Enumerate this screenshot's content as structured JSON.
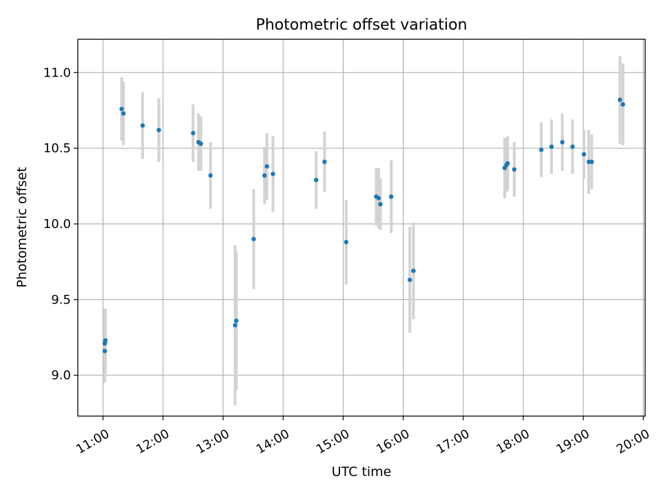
{
  "chart_data": {
    "type": "scatter",
    "title": "Photometric offset variation",
    "xlabel": "UTC time",
    "ylabel": "Photometric offset",
    "x_unit": "UTC hour of day (decimal)",
    "xlim": [
      10.58,
      20.03
    ],
    "ylim": [
      8.73,
      11.22
    ],
    "grid": true,
    "legend": "none",
    "x_ticks": [
      {
        "value": 11,
        "label": "11:00"
      },
      {
        "value": 12,
        "label": "12:00"
      },
      {
        "value": 13,
        "label": "13:00"
      },
      {
        "value": 14,
        "label": "14:00"
      },
      {
        "value": 15,
        "label": "15:00"
      },
      {
        "value": 16,
        "label": "16:00"
      },
      {
        "value": 17,
        "label": "17:00"
      },
      {
        "value": 18,
        "label": "18:00"
      },
      {
        "value": 19,
        "label": "19:00"
      },
      {
        "value": 20,
        "label": "20:00"
      }
    ],
    "y_ticks": [
      {
        "value": 9.0,
        "label": "9.0"
      },
      {
        "value": 9.5,
        "label": "9.5"
      },
      {
        "value": 10.0,
        "label": "10.0"
      },
      {
        "value": 10.5,
        "label": "10.5"
      },
      {
        "value": 11.0,
        "label": "11.0"
      }
    ],
    "colors": {
      "point": "#1f77b4",
      "errorbar": "#d3d3d3",
      "grid": "#b0b0b0"
    },
    "series": [
      {
        "points": [
          {
            "x": 11.03,
            "y": 9.16,
            "err": 0.21
          },
          {
            "x": 11.03,
            "y": 9.21,
            "err": 0.23
          },
          {
            "x": 11.04,
            "y": 9.23,
            "err": 0.21
          },
          {
            "x": 11.31,
            "y": 10.76,
            "err": 0.21
          },
          {
            "x": 11.34,
            "y": 10.73,
            "err": 0.21
          },
          {
            "x": 11.66,
            "y": 10.65,
            "err": 0.22
          },
          {
            "x": 11.93,
            "y": 10.62,
            "err": 0.21
          },
          {
            "x": 12.5,
            "y": 10.6,
            "err": 0.19
          },
          {
            "x": 12.59,
            "y": 10.54,
            "err": 0.19
          },
          {
            "x": 12.63,
            "y": 10.53,
            "err": 0.18
          },
          {
            "x": 12.79,
            "y": 10.32,
            "err": 0.22
          },
          {
            "x": 13.2,
            "y": 9.33,
            "err": 0.53
          },
          {
            "x": 13.22,
            "y": 9.36,
            "err": 0.46
          },
          {
            "x": 13.51,
            "y": 9.9,
            "err": 0.33
          },
          {
            "x": 13.69,
            "y": 10.32,
            "err": 0.19
          },
          {
            "x": 13.73,
            "y": 10.38,
            "err": 0.22
          },
          {
            "x": 13.83,
            "y": 10.33,
            "err": 0.25
          },
          {
            "x": 14.55,
            "y": 10.29,
            "err": 0.19
          },
          {
            "x": 14.69,
            "y": 10.41,
            "err": 0.2
          },
          {
            "x": 15.05,
            "y": 9.88,
            "err": 0.28
          },
          {
            "x": 15.55,
            "y": 10.18,
            "err": 0.19
          },
          {
            "x": 15.59,
            "y": 10.17,
            "err": 0.2
          },
          {
            "x": 15.62,
            "y": 10.13,
            "err": 0.17
          },
          {
            "x": 15.8,
            "y": 10.18,
            "err": 0.24
          },
          {
            "x": 16.11,
            "y": 9.63,
            "err": 0.35
          },
          {
            "x": 16.17,
            "y": 9.69,
            "err": 0.32
          },
          {
            "x": 17.69,
            "y": 10.37,
            "err": 0.2
          },
          {
            "x": 17.72,
            "y": 10.39,
            "err": 0.18
          },
          {
            "x": 17.74,
            "y": 10.4,
            "err": 0.18
          },
          {
            "x": 17.85,
            "y": 10.36,
            "err": 0.18
          },
          {
            "x": 18.3,
            "y": 10.49,
            "err": 0.18
          },
          {
            "x": 18.47,
            "y": 10.51,
            "err": 0.18
          },
          {
            "x": 18.65,
            "y": 10.54,
            "err": 0.19
          },
          {
            "x": 18.82,
            "y": 10.51,
            "err": 0.18
          },
          {
            "x": 19.01,
            "y": 10.46,
            "err": 0.16
          },
          {
            "x": 19.09,
            "y": 10.41,
            "err": 0.21
          },
          {
            "x": 19.14,
            "y": 10.41,
            "err": 0.18
          },
          {
            "x": 19.61,
            "y": 10.82,
            "err": 0.29
          },
          {
            "x": 19.66,
            "y": 10.79,
            "err": 0.27
          }
        ]
      }
    ]
  }
}
